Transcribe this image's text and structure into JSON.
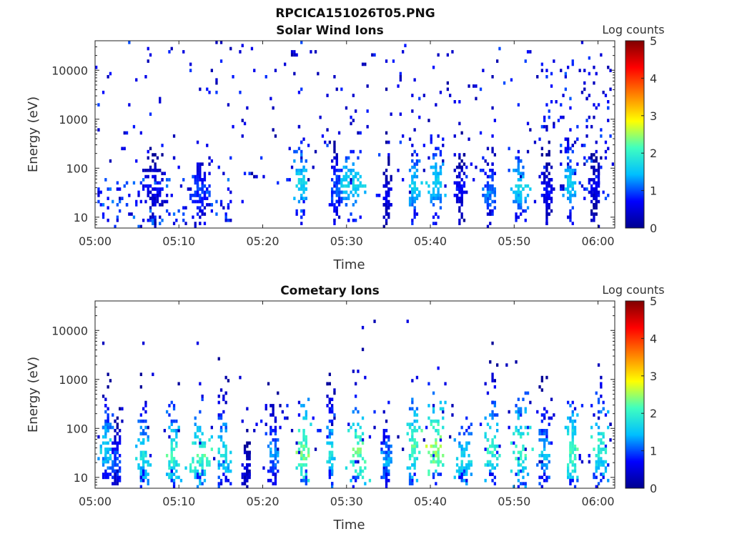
{
  "figure": {
    "title": "RPCICA151026T05.PNG"
  },
  "chart_data": [
    {
      "type": "heatmap",
      "title": "Solar Wind Ions",
      "xlabel": "Time",
      "ylabel": "Energy (eV)",
      "x_ticks": [
        "05:00",
        "05:10",
        "05:20",
        "05:30",
        "05:40",
        "05:50",
        "06:00"
      ],
      "x_range_minutes": [
        0,
        62
      ],
      "y_ticks": [
        "10",
        "100",
        "1000",
        "10000"
      ],
      "y_scale": "log",
      "ylim": [
        6,
        40000
      ],
      "colorbar": {
        "label": "Log counts",
        "ticks": [
          "0",
          "1",
          "2",
          "3",
          "4",
          "5"
        ],
        "range": [
          0,
          5
        ]
      },
      "colormap": [
        "#00008f",
        "#0000ff",
        "#00bfff",
        "#40ffbf",
        "#ffff00",
        "#ff8000",
        "#ff0000",
        "#800000"
      ],
      "data": {
        "scatter": [
          [
            0,
            62,
            20,
            40000,
            0.2,
            1.0,
            220
          ],
          [
            0,
            16,
            6,
            60,
            0.3,
            1.2,
            120
          ],
          [
            17,
            62,
            40,
            40000,
            0.1,
            0.6,
            70
          ],
          [
            53,
            62,
            20,
            15000,
            0.2,
            1.1,
            100
          ]
        ],
        "blobs": [
          [
            24.5,
            1.0,
            50,
            25,
            1.3,
            1.9
          ],
          [
            28.6,
            0.8,
            40,
            35,
            0.7,
            1.3
          ],
          [
            30.5,
            2.0,
            45,
            12,
            1.4,
            1.8
          ],
          [
            34.7,
            0.6,
            25,
            20,
            0.3,
            0.8
          ],
          [
            38.0,
            0.8,
            40,
            20,
            1.3,
            1.8
          ],
          [
            40.5,
            1.4,
            50,
            30,
            1.3,
            1.8
          ],
          [
            43.4,
            0.7,
            35,
            16,
            0.4,
            0.9
          ],
          [
            47.0,
            1.0,
            30,
            18,
            0.7,
            1.4
          ],
          [
            50.5,
            1.2,
            40,
            22,
            1.2,
            1.8
          ],
          [
            53.8,
            0.6,
            30,
            14,
            0.4,
            0.9
          ],
          [
            56.5,
            0.8,
            45,
            22,
            1.2,
            1.8
          ],
          [
            59.5,
            0.9,
            40,
            16,
            0.3,
            0.8
          ],
          [
            12.5,
            1.3,
            35,
            14,
            0.6,
            1.2
          ],
          [
            7.0,
            1.6,
            40,
            12,
            0.3,
            0.9
          ]
        ]
      }
    },
    {
      "type": "heatmap",
      "title": "Cometary Ions",
      "xlabel": "Time",
      "ylabel": "Energy (eV)",
      "x_ticks": [
        "05:00",
        "05:10",
        "05:20",
        "05:30",
        "05:40",
        "05:50",
        "06:00"
      ],
      "x_range_minutes": [
        0,
        62
      ],
      "y_ticks": [
        "10",
        "100",
        "1000",
        "10000"
      ],
      "y_scale": "log",
      "ylim": [
        6,
        40000
      ],
      "colorbar": {
        "label": "Log counts",
        "ticks": [
          "0",
          "1",
          "2",
          "3",
          "4",
          "5"
        ],
        "range": [
          0,
          5
        ]
      },
      "colormap": [
        "#00008f",
        "#0000ff",
        "#00bfff",
        "#40ffbf",
        "#ffff00",
        "#ff8000",
        "#ff0000",
        "#800000"
      ],
      "data": {
        "scatter": [
          [
            0,
            62,
            30,
            15000,
            0.1,
            0.6,
            25
          ],
          [
            0,
            62,
            15,
            300,
            0.2,
            0.9,
            110
          ]
        ],
        "blobs": [
          [
            1.2,
            0.9,
            40,
            60,
            1.0,
            1.9
          ],
          [
            2.4,
            0.6,
            20,
            30,
            0.5,
            1.3
          ],
          [
            5.6,
            1.0,
            25,
            60,
            1.3,
            2.0
          ],
          [
            9.2,
            1.0,
            25,
            40,
            1.4,
            2.3
          ],
          [
            12.3,
            1.6,
            25,
            40,
            1.6,
            2.4
          ],
          [
            15.2,
            1.2,
            30,
            150,
            1.2,
            2.0
          ],
          [
            18.0,
            0.6,
            12,
            12,
            0.3,
            0.7
          ],
          [
            21.2,
            0.9,
            30,
            60,
            0.9,
            1.5
          ],
          [
            24.8,
            1.0,
            30,
            50,
            1.8,
            2.6
          ],
          [
            28.0,
            0.7,
            30,
            300,
            1.2,
            2.0
          ],
          [
            31.0,
            1.6,
            30,
            160,
            1.7,
            2.6
          ],
          [
            34.6,
            0.7,
            20,
            12,
            0.8,
            1.6
          ],
          [
            37.8,
            0.9,
            40,
            120,
            1.6,
            2.4
          ],
          [
            40.6,
            1.5,
            35,
            110,
            1.9,
            2.8
          ],
          [
            43.8,
            1.2,
            20,
            25,
            1.3,
            1.9
          ],
          [
            47.2,
            1.1,
            35,
            250,
            1.4,
            2.3
          ],
          [
            50.6,
            1.3,
            35,
            200,
            1.6,
            2.4
          ],
          [
            53.4,
            1.1,
            30,
            170,
            1.0,
            1.8
          ],
          [
            56.8,
            0.9,
            30,
            40,
            1.6,
            2.4
          ],
          [
            60.0,
            1.2,
            40,
            180,
            1.4,
            2.3
          ]
        ]
      }
    }
  ]
}
